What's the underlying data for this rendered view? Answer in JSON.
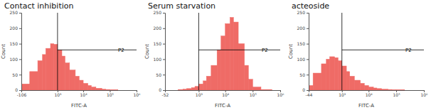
{
  "chart_data": [
    {
      "type": "histogram",
      "title": "Contact inhibition",
      "xlabel": "FITC-A",
      "ylabel": "Count",
      "log": "x",
      "color": "#ef6b66",
      "bins": [
        -106,
        0,
        100,
        200,
        300,
        500,
        700,
        1000,
        1500,
        2000,
        3000,
        5000,
        7000,
        10000,
        15000,
        20000,
        30000,
        50000,
        70000,
        100000,
        200000,
        500000,
        1000000
      ],
      "counts": [
        20,
        60,
        95,
        115,
        135,
        150,
        148,
        130,
        110,
        88,
        65,
        45,
        32,
        22,
        15,
        10,
        6,
        3,
        2,
        1,
        0,
        0
      ],
      "xlim": [
        -106,
        1000000
      ],
      "xticks": [
        -106,
        {
          "value": 1000,
          "label": "10³"
        },
        {
          "value": 10000,
          "label": "10⁴"
        },
        {
          "value": 100000,
          "label": "10⁵"
        },
        {
          "value": 1000000,
          "label": "10⁶"
        }
      ],
      "ylim": [
        0,
        250
      ],
      "yticks": [
        0,
        50,
        100,
        150,
        200,
        250
      ],
      "gate": {
        "label": "P2",
        "x": 1000,
        "y": 130
      }
    },
    {
      "type": "histogram",
      "title": "Serum starvation",
      "xlabel": "FITC-A",
      "ylabel": "Count",
      "log": "x",
      "color": "#ef6b66",
      "bins": [
        -52,
        0,
        100,
        200,
        300,
        500,
        700,
        1000,
        1500,
        2000,
        3000,
        5000,
        7000,
        10000,
        15000,
        20000,
        30000,
        50000,
        70000,
        100000,
        200000,
        500000,
        1000000
      ],
      "counts": [
        0,
        0,
        2,
        3,
        5,
        8,
        12,
        20,
        30,
        45,
        80,
        130,
        175,
        215,
        235,
        220,
        150,
        80,
        35,
        10,
        2,
        0
      ],
      "xlim": [
        -52,
        1000000
      ],
      "xticks": [
        -52,
        {
          "value": 1000,
          "label": "10³"
        },
        {
          "value": 10000,
          "label": "10⁴"
        },
        {
          "value": 100000,
          "label": "10⁵"
        },
        {
          "value": 1000000,
          "label": "10⁶"
        }
      ],
      "ylim": [
        0,
        250
      ],
      "yticks": [
        0,
        50,
        100,
        150,
        200,
        250
      ],
      "gate": {
        "label": "P2",
        "x": 1000,
        "y": 130
      }
    },
    {
      "type": "histogram",
      "title": "acteoside",
      "xlabel": "FITC-A",
      "ylabel": "Count",
      "log": "x",
      "color": "#ef6b66",
      "bins": [
        -44,
        0,
        100,
        200,
        300,
        500,
        700,
        1000,
        1500,
        2000,
        3000,
        5000,
        7000,
        10000,
        15000,
        20000,
        30000,
        50000,
        70000,
        100000,
        200000,
        500000,
        1000000
      ],
      "counts": [
        15,
        55,
        85,
        100,
        108,
        105,
        95,
        78,
        60,
        45,
        32,
        22,
        15,
        10,
        7,
        5,
        3,
        2,
        1,
        1,
        0,
        0
      ],
      "xlim": [
        -44,
        1000000
      ],
      "xticks": [
        -44,
        {
          "value": 1000,
          "label": "10³"
        },
        {
          "value": 10000,
          "label": "10⁴"
        },
        {
          "value": 100000,
          "label": "10⁵"
        },
        {
          "value": 1000000,
          "label": "10⁶"
        }
      ],
      "ylim": [
        0,
        250
      ],
      "yticks": [
        0,
        50,
        100,
        150,
        200,
        250
      ],
      "gate": {
        "label": "P2",
        "x": 1000,
        "y": 130
      }
    }
  ]
}
